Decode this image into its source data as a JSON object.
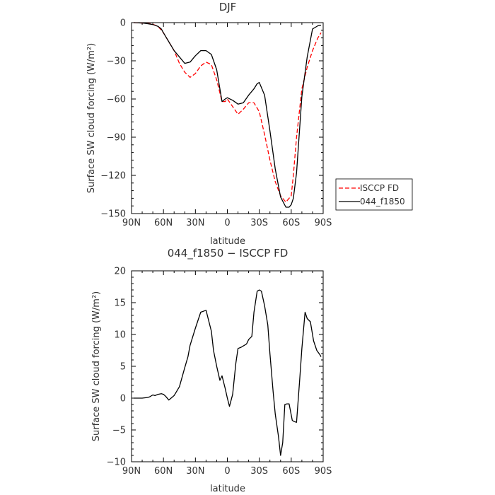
{
  "chart_data": [
    {
      "type": "line",
      "title": "DJF",
      "xlabel": "latitude",
      "ylabel": "Surface SW cloud forcing (W/m²)",
      "xlim": [
        90,
        -90
      ],
      "ylim": [
        -150,
        0
      ],
      "xticks": [
        90,
        60,
        30,
        0,
        -30,
        -60,
        -90
      ],
      "xtick_labels": [
        "90N",
        "60N",
        "30N",
        "0",
        "30S",
        "60S",
        "90S"
      ],
      "yticks": [
        0,
        -30,
        -60,
        -90,
        -120,
        -150
      ],
      "ytick_labels": [
        "0",
        "−30",
        "−60",
        "−90",
        "−120",
        "−150"
      ],
      "legend_position": "right",
      "series": [
        {
          "name": "ISCCP FD",
          "color": "#ff0000",
          "dash": "dashed",
          "x": [
            88,
            80,
            75,
            70,
            65,
            60,
            55,
            50,
            45,
            40,
            35,
            30,
            25,
            20,
            15,
            10,
            5,
            2,
            0,
            -5,
            -10,
            -15,
            -20,
            -25,
            -30,
            -35,
            -40,
            -45,
            -50,
            -55,
            -60,
            -62,
            -65,
            -70,
            -75,
            -80,
            -85,
            -88
          ],
          "y": [
            0,
            -0.3,
            -0.6,
            -1.2,
            -3,
            -8,
            -15,
            -22,
            -32,
            -39,
            -43,
            -40,
            -34,
            -31,
            -33,
            -45,
            -62,
            -62,
            -60,
            -66,
            -72,
            -68,
            -63,
            -63,
            -70,
            -88,
            -108,
            -125,
            -136,
            -141,
            -136,
            -120,
            -90,
            -52,
            -35,
            -22,
            -12,
            -8
          ]
        },
        {
          "name": "044_f1850",
          "color": "#000000",
          "dash": "solid",
          "x": [
            88,
            80,
            75,
            70,
            65,
            62,
            60,
            55,
            50,
            45,
            40,
            35,
            30,
            25,
            20,
            15,
            10,
            5,
            2,
            0,
            -5,
            -10,
            -15,
            -20,
            -25,
            -28,
            -30,
            -35,
            -40,
            -45,
            -50,
            -55,
            -58,
            -60,
            -62,
            -65,
            -70,
            -75,
            -80,
            -85,
            -88
          ],
          "y": [
            0,
            -0.3,
            -0.8,
            -1.5,
            -3,
            -5,
            -8,
            -15,
            -22,
            -27,
            -32,
            -31,
            -26,
            -22,
            -22,
            -25,
            -37,
            -62,
            -60,
            -59,
            -61,
            -64,
            -63,
            -57,
            -52,
            -48,
            -47,
            -57,
            -85,
            -115,
            -137,
            -145,
            -145,
            -143,
            -138,
            -118,
            -58,
            -27,
            -5,
            -2.5,
            -2
          ]
        }
      ]
    },
    {
      "type": "line",
      "title": "044_f1850 − ISCCP FD",
      "xlabel": "latitude",
      "ylabel": "Surface SW cloud forcing (W/m²)",
      "xlim": [
        90,
        -90
      ],
      "ylim": [
        -10,
        20
      ],
      "xticks": [
        90,
        60,
        30,
        0,
        -30,
        -60,
        -90
      ],
      "xtick_labels": [
        "90N",
        "60N",
        "30N",
        "0",
        "30S",
        "60S",
        "90S"
      ],
      "yticks": [
        20,
        15,
        10,
        5,
        0,
        -5,
        -10
      ],
      "ytick_labels": [
        "20",
        "15",
        "10",
        "5",
        "0",
        "−5",
        "−10"
      ],
      "series": [
        {
          "color": "#000000",
          "x": [
            88,
            83,
            80,
            75,
            73,
            70,
            68,
            65,
            62,
            60,
            58,
            55,
            50,
            45,
            40,
            37,
            35,
            30,
            28,
            25,
            20,
            15,
            13,
            10,
            7,
            5,
            2,
            0,
            -2,
            -5,
            -8,
            -10,
            -13,
            -15,
            -18,
            -20,
            -23,
            -25,
            -28,
            -30,
            -32,
            -35,
            -38,
            -40,
            -43,
            -45,
            -48,
            -50,
            -52,
            -54,
            -56,
            -58,
            -61,
            -63,
            -65,
            -68,
            -70,
            -73,
            -75,
            -78,
            -81,
            -84,
            -87,
            -88
          ],
          "y": [
            0,
            0,
            0,
            0.1,
            0.2,
            0.5,
            0.4,
            0.6,
            0.7,
            0.6,
            0.3,
            -0.3,
            0.4,
            1.8,
            4.8,
            6.5,
            8.3,
            11,
            12,
            13.5,
            13.8,
            10.5,
            7.5,
            5,
            2.8,
            3.5,
            1.5,
            0,
            -1.3,
            0.6,
            5.5,
            7.8,
            8,
            8.2,
            8.5,
            9.2,
            9.7,
            13.5,
            16.8,
            17,
            16.8,
            14.5,
            11.5,
            7,
            1,
            -2.5,
            -6,
            -9,
            -7,
            -1,
            -0.9,
            -0.9,
            -3.5,
            -3.7,
            -3.8,
            3,
            7.8,
            13.5,
            12.5,
            12,
            9,
            7.5,
            6.8,
            6.5
          ]
        }
      ]
    }
  ]
}
